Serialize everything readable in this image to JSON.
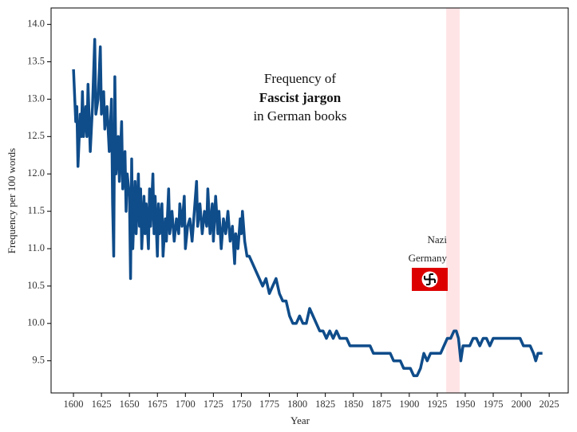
{
  "chart_data": {
    "type": "line",
    "title_lines": [
      "Frequency of",
      "Fascist jargon",
      "in German books"
    ],
    "xlabel": "Year",
    "ylabel": "Frequency per 100 words",
    "annotation": [
      "Nazi",
      "Germany"
    ],
    "shaded_span": [
      1933,
      1945
    ],
    "shade_color": "#ffe4e6",
    "xlim": [
      1580,
      2042
    ],
    "ylim": [
      9.07,
      14.22
    ],
    "xticks": [
      1600,
      1625,
      1650,
      1675,
      1700,
      1725,
      1750,
      1775,
      1800,
      1825,
      1850,
      1875,
      1900,
      1925,
      1950,
      1975,
      2000,
      2025
    ],
    "yticks": [
      9.5,
      {
        "value": 10,
        "label": "10.0"
      },
      10.5,
      {
        "value": 11,
        "label": "11.0"
      },
      11.5,
      {
        "value": 12,
        "label": "12.0"
      },
      12.5,
      {
        "value": 13,
        "label": "13.0"
      },
      13.5,
      {
        "value": 14,
        "label": "14.0"
      }
    ],
    "series": [
      {
        "color": "#0f4c8a",
        "x": [
          1600,
          1602,
          1603,
          1604,
          1606,
          1607,
          1608,
          1609,
          1611,
          1612,
          1613,
          1615,
          1617,
          1619,
          1620,
          1622,
          1624,
          1625,
          1627,
          1628,
          1630,
          1632,
          1634,
          1635,
          1636,
          1637,
          1638,
          1640,
          1641,
          1643,
          1644,
          1646,
          1647,
          1648,
          1650,
          1651,
          1652,
          1653,
          1655,
          1656,
          1658,
          1659,
          1660,
          1661,
          1663,
          1664,
          1665,
          1667,
          1668,
          1669,
          1671,
          1672,
          1673,
          1675,
          1676,
          1677,
          1679,
          1680,
          1682,
          1683,
          1685,
          1686,
          1688,
          1690,
          1692,
          1694,
          1695,
          1697,
          1699,
          1700,
          1702,
          1704,
          1706,
          1708,
          1710,
          1711,
          1713,
          1715,
          1717,
          1719,
          1720,
          1722,
          1724,
          1725,
          1727,
          1729,
          1730,
          1732,
          1734,
          1736,
          1738,
          1740,
          1742,
          1744,
          1745,
          1747,
          1749,
          1750,
          1751,
          1753,
          1755,
          1757,
          1760,
          1763,
          1766,
          1769,
          1772,
          1775,
          1778,
          1781,
          1784,
          1787,
          1790,
          1793,
          1796,
          1799,
          1802,
          1805,
          1808,
          1811,
          1814,
          1817,
          1820,
          1823,
          1826,
          1829,
          1832,
          1835,
          1838,
          1841,
          1844,
          1847,
          1850,
          1853,
          1856,
          1859,
          1862,
          1865,
          1868,
          1871,
          1874,
          1877,
          1880,
          1883,
          1886,
          1889,
          1892,
          1895,
          1898,
          1901,
          1904,
          1907,
          1910,
          1913,
          1916,
          1919,
          1922,
          1925,
          1928,
          1931,
          1934,
          1937,
          1940,
          1942,
          1944,
          1946,
          1948,
          1951,
          1954,
          1957,
          1960,
          1963,
          1966,
          1969,
          1972,
          1975,
          1978,
          1981,
          1984,
          1987,
          1990,
          1993,
          1996,
          1999,
          2002,
          2005,
          2008,
          2011,
          2013,
          2015,
          2019
        ],
        "values": [
          13.4,
          12.7,
          12.9,
          12.1,
          12.8,
          12.5,
          13.1,
          12.5,
          12.9,
          12.5,
          13.2,
          12.3,
          12.9,
          13.8,
          12.8,
          13.0,
          13.7,
          12.8,
          13.1,
          12.6,
          12.9,
          12.3,
          13.0,
          11.6,
          10.9,
          13.3,
          12.0,
          12.5,
          11.9,
          12.7,
          11.8,
          12.3,
          11.5,
          12.0,
          11.7,
          10.6,
          12.2,
          11.0,
          11.9,
          11.2,
          12.0,
          11.3,
          11.8,
          11.0,
          11.7,
          11.2,
          11.6,
          11.0,
          11.8,
          11.3,
          12.0,
          11.2,
          11.7,
          10.9,
          11.6,
          11.2,
          11.6,
          10.9,
          11.4,
          11.1,
          11.8,
          11.2,
          11.5,
          11.1,
          11.4,
          11.2,
          11.6,
          11.3,
          11.7,
          11.0,
          11.3,
          11.4,
          11.1,
          11.5,
          11.9,
          11.3,
          11.6,
          11.2,
          11.5,
          11.3,
          11.8,
          11.2,
          11.6,
          11.1,
          11.7,
          11.2,
          11.5,
          11.0,
          11.4,
          11.2,
          11.5,
          11.1,
          11.3,
          10.8,
          11.2,
          11.0,
          11.4,
          11.2,
          11.5,
          11.1,
          10.9,
          10.9,
          10.8,
          10.7,
          10.6,
          10.5,
          10.6,
          10.4,
          10.5,
          10.6,
          10.4,
          10.3,
          10.3,
          10.1,
          10.0,
          10.0,
          10.1,
          10.0,
          10.0,
          10.2,
          10.1,
          10.0,
          9.9,
          9.9,
          9.8,
          9.9,
          9.8,
          9.9,
          9.8,
          9.8,
          9.8,
          9.7,
          9.7,
          9.7,
          9.7,
          9.7,
          9.7,
          9.7,
          9.6,
          9.6,
          9.6,
          9.6,
          9.6,
          9.6,
          9.5,
          9.5,
          9.5,
          9.4,
          9.4,
          9.4,
          9.3,
          9.3,
          9.4,
          9.6,
          9.5,
          9.6,
          9.6,
          9.6,
          9.6,
          9.7,
          9.8,
          9.8,
          9.9,
          9.9,
          9.8,
          9.5,
          9.7,
          9.7,
          9.7,
          9.8,
          9.8,
          9.7,
          9.8,
          9.8,
          9.7,
          9.8,
          9.8,
          9.8,
          9.8,
          9.8,
          9.8,
          9.8,
          9.8,
          9.8,
          9.7,
          9.7,
          9.7,
          9.6,
          9.5,
          9.6,
          9.6
        ]
      }
    ]
  }
}
